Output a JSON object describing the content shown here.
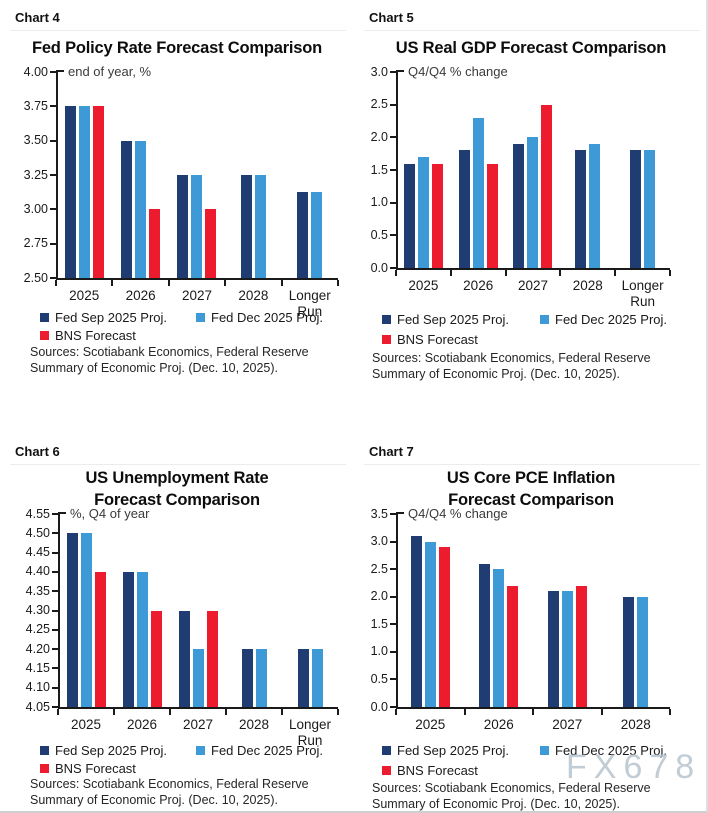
{
  "watermark": "FX678",
  "colors": {
    "navy": "#1f3d72",
    "blue": "#3d9ad6",
    "red": "#ec1b2e"
  },
  "panels": [
    {
      "label": "Chart 4",
      "sources_line1": "Sources: Scotiabank Economics, Federal Reserve",
      "sources_line2": "Summary of Economic Proj. (Dec. 10, 2025)."
    },
    {
      "label": "Chart 5",
      "sources_line1": "Sources: Scotiabank Economics, Federal Reserve",
      "sources_line2": "Summary of Economic Proj. (Dec. 10, 2025)."
    },
    {
      "label": "Chart 6",
      "sources_line1": "Sources: Scotiabank Economics, Federal Reserve",
      "sources_line2": "Summary of Economic Proj. (Dec. 10, 2025)."
    },
    {
      "label": "Chart 7",
      "sources_line1": "Sources: Scotiabank Economics, Federal Reserve",
      "sources_line2": "Summary of Economic Proj. (Dec. 10, 2025)."
    }
  ],
  "chart_data": [
    {
      "type": "bar",
      "title_lines": [
        "Fed Policy Rate Forecast Comparison"
      ],
      "subtitle": "end of year, %",
      "categories": [
        "2025",
        "2026",
        "2027",
        "2028",
        "Longer\nRun"
      ],
      "series": [
        {
          "key": "fed-sep-2025",
          "name": "Fed Sep 2025 Proj.",
          "color": "navy",
          "values": [
            3.75,
            3.5,
            3.25,
            3.25,
            3.13
          ]
        },
        {
          "key": "fed-dec-2025",
          "name": "Fed Dec 2025 Proj.",
          "color": "blue",
          "values": [
            3.75,
            3.5,
            3.25,
            3.25,
            3.13
          ]
        },
        {
          "key": "bns-forecast",
          "name": "BNS Forecast",
          "color": "red",
          "values": [
            3.75,
            3.0,
            3.0,
            null,
            null
          ]
        }
      ],
      "ylim": [
        2.5,
        4.0
      ],
      "ystep": 0.25,
      "ydecimals": 2,
      "grid": false,
      "legend_position": "bottom"
    },
    {
      "type": "bar",
      "title_lines": [
        "US Real GDP Forecast Comparison"
      ],
      "subtitle": "Q4/Q4 % change",
      "categories": [
        "2025",
        "2026",
        "2027",
        "2028",
        "Longer\nRun"
      ],
      "series": [
        {
          "key": "fed-sep-2025",
          "name": "Fed Sep 2025 Proj.",
          "color": "navy",
          "values": [
            1.6,
            1.8,
            1.9,
            1.8,
            1.8
          ]
        },
        {
          "key": "fed-dec-2025",
          "name": "Fed Dec 2025 Proj.",
          "color": "blue",
          "values": [
            1.7,
            2.3,
            2.0,
            1.9,
            1.8
          ]
        },
        {
          "key": "bns-forecast",
          "name": "BNS Forecast",
          "color": "red",
          "values": [
            1.6,
            1.6,
            2.5,
            null,
            null
          ]
        }
      ],
      "ylim": [
        0.0,
        3.0
      ],
      "ystep": 0.5,
      "ydecimals": 1,
      "grid": false,
      "legend_position": "bottom"
    },
    {
      "type": "bar",
      "title_lines": [
        "US Unemployment Rate",
        "Forecast Comparison"
      ],
      "subtitle": "%, Q4 of year",
      "categories": [
        "2025",
        "2026",
        "2027",
        "2028",
        "Longer\nRun"
      ],
      "series": [
        {
          "key": "fed-sep-2025",
          "name": "Fed Sep 2025 Proj.",
          "color": "navy",
          "values": [
            4.5,
            4.4,
            4.3,
            4.2,
            4.2
          ]
        },
        {
          "key": "fed-dec-2025",
          "name": "Fed Dec 2025 Proj.",
          "color": "blue",
          "values": [
            4.5,
            4.4,
            4.2,
            4.2,
            4.2
          ]
        },
        {
          "key": "bns-forecast",
          "name": "BNS Forecast",
          "color": "red",
          "values": [
            4.4,
            4.3,
            4.3,
            null,
            null
          ]
        }
      ],
      "ylim": [
        4.05,
        4.55
      ],
      "ystep": 0.05,
      "ydecimals": 2,
      "grid": false,
      "legend_position": "bottom"
    },
    {
      "type": "bar",
      "title_lines": [
        "US Core PCE Inflation",
        "Forecast Comparison"
      ],
      "subtitle": "Q4/Q4 % change",
      "categories": [
        "2025",
        "2026",
        "2027",
        "2028"
      ],
      "series": [
        {
          "key": "fed-sep-2025",
          "name": "Fed Sep 2025 Proj.",
          "color": "navy",
          "values": [
            3.1,
            2.6,
            2.1,
            2.0
          ]
        },
        {
          "key": "fed-dec-2025",
          "name": "Fed Dec 2025 Proj.",
          "color": "blue",
          "values": [
            3.0,
            2.5,
            2.1,
            2.0
          ]
        },
        {
          "key": "bns-forecast",
          "name": "BNS Forecast",
          "color": "red",
          "values": [
            2.9,
            2.2,
            2.2,
            null
          ]
        }
      ],
      "ylim": [
        0.0,
        3.5
      ],
      "ystep": 0.5,
      "ydecimals": 1,
      "grid": false,
      "legend_position": "bottom"
    }
  ]
}
